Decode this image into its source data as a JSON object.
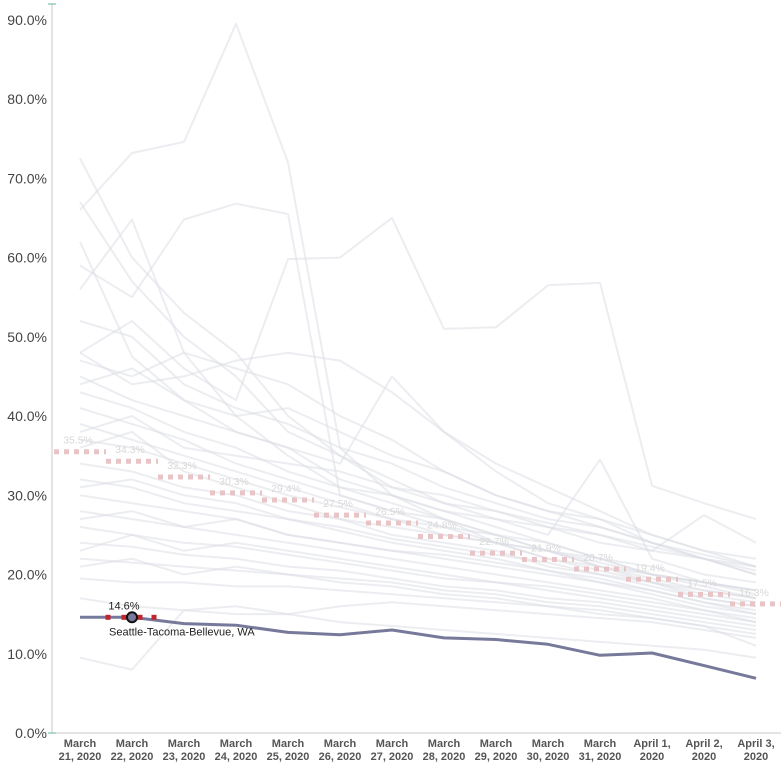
{
  "chart_data": {
    "type": "line",
    "title": "",
    "xlabel": "",
    "ylabel": "",
    "categories": [
      "March 21, 2020",
      "March 22, 2020",
      "March 23, 2020",
      "March 24, 2020",
      "March 25, 2020",
      "March 26, 2020",
      "March 27, 2020",
      "March 28, 2020",
      "March 29, 2020",
      "March 30, 2020",
      "March 31, 2020",
      "April 1, 2020",
      "April 2, 2020",
      "April 3, 2020"
    ],
    "category_ticks": [
      [
        "March",
        "21, 2020"
      ],
      [
        "March",
        "22, 2020"
      ],
      [
        "March",
        "23, 2020"
      ],
      [
        "March",
        "24, 2020"
      ],
      [
        "March",
        "25, 2020"
      ],
      [
        "March",
        "26, 2020"
      ],
      [
        "March",
        "27, 2020"
      ],
      [
        "March",
        "28, 2020"
      ],
      [
        "March",
        "29, 2020"
      ],
      [
        "March",
        "30, 2020"
      ],
      [
        "March",
        "31, 2020"
      ],
      [
        "April 1,",
        "2020"
      ],
      [
        "April 2,",
        "2020"
      ],
      [
        "April 3,",
        "2020"
      ]
    ],
    "yticks": [
      "0.0%",
      "10.0%",
      "20.0%",
      "30.0%",
      "40.0%",
      "50.0%",
      "60.0%",
      "70.0%",
      "80.0%",
      "90.0%"
    ],
    "ylim": [
      0,
      92
    ],
    "grid": false,
    "average_series": {
      "values": [
        35.5,
        34.3,
        32.3,
        30.3,
        29.4,
        27.5,
        26.5,
        24.8,
        22.7,
        21.9,
        20.7,
        19.4,
        17.5,
        16.3
      ],
      "labels": [
        "35.5%",
        "34.3%",
        "32.3%",
        "30.3%",
        "29.4%",
        "27.5%",
        "26.5%",
        "24.8%",
        "22.7%",
        "21.9%",
        "20.7%",
        "19.4%",
        "17.5%",
        "16.3%"
      ],
      "color": "#e8c4c6"
    },
    "highlight_series": {
      "name": "Seattle-Tacoma-Bellevue, WA",
      "values": [
        14.6,
        14.6,
        13.8,
        13.6,
        12.7,
        12.4,
        13.0,
        12.0,
        11.8,
        11.2,
        9.8,
        10.1,
        8.5,
        6.9
      ],
      "point_label": "14.6%",
      "point_index": 1,
      "color": "#77799a",
      "marker_color": "#c0262d"
    },
    "background_series": [
      {
        "values": [
          72.5,
          60.0,
          53.0,
          48.0,
          40.0,
          35.0,
          31.0,
          29.0,
          27.0,
          26.0,
          24.0,
          23.0,
          22.0,
          20.5
        ]
      },
      {
        "values": [
          66.0,
          73.2,
          74.6,
          89.5,
          72.0,
          36.0,
          30.0,
          28.0,
          26.0,
          24.0,
          22.0,
          21.0,
          19.0,
          18.0
        ]
      },
      {
        "values": [
          59.0,
          55.0,
          64.8,
          66.8,
          65.5,
          30.0,
          28.0,
          26.0,
          25.0,
          23.0,
          21.5,
          20.0,
          18.5,
          17.0
        ]
      },
      {
        "values": [
          48.0,
          52.0,
          46.0,
          42.0,
          59.8,
          60.0,
          65.0,
          51.0,
          51.2,
          56.5,
          56.8,
          31.2,
          29.0,
          27.0
        ]
      },
      {
        "values": [
          67.0,
          57.0,
          50.0,
          45.0,
          38.0,
          35.0,
          32.0,
          29.0,
          28.0,
          26.5,
          25.0,
          23.5,
          22.0,
          20.0
        ]
      },
      {
        "values": [
          62.0,
          47.5,
          42.0,
          38.0,
          36.0,
          32.0,
          30.0,
          27.0,
          24.0,
          22.0,
          21.0,
          19.0,
          18.0,
          17.0
        ]
      },
      {
        "values": [
          56.0,
          64.8,
          48.0,
          40.0,
          35.0,
          31.0,
          29.0,
          27.0,
          25.0,
          23.0,
          22.0,
          20.0,
          19.0,
          18.0
        ]
      },
      {
        "values": [
          52.0,
          50.0,
          44.0,
          41.0,
          39.0,
          36.0,
          34.0,
          31.0,
          29.0,
          27.0,
          26.0,
          24.0,
          22.5,
          21.0
        ]
      },
      {
        "values": [
          47.0,
          45.0,
          48.0,
          46.0,
          44.0,
          40.0,
          37.0,
          33.0,
          30.0,
          28.0,
          26.0,
          24.0,
          22.0,
          21.0
        ]
      },
      {
        "values": [
          45.0,
          42.0,
          40.0,
          38.0,
          36.0,
          34.0,
          45.0,
          38.0,
          33.0,
          29.0,
          27.0,
          25.0,
          23.0,
          21.0
        ]
      },
      {
        "values": [
          43.0,
          41.0,
          38.0,
          36.0,
          33.0,
          31.0,
          30.0,
          28.0,
          27.0,
          25.0,
          34.5,
          22.0,
          20.0,
          19.0
        ]
      },
      {
        "values": [
          41.0,
          39.0,
          37.0,
          34.0,
          32.0,
          30.0,
          28.0,
          27.0,
          25.0,
          24.0,
          22.0,
          20.0,
          19.0,
          18.0
        ]
      },
      {
        "values": [
          39.0,
          37.0,
          35.0,
          33.0,
          31.0,
          29.0,
          27.0,
          26.0,
          24.0,
          23.0,
          21.0,
          19.5,
          18.0,
          17.0
        ]
      },
      {
        "values": [
          37.0,
          36.0,
          34.0,
          32.0,
          30.0,
          28.5,
          27.0,
          25.0,
          24.0,
          22.0,
          20.5,
          19.0,
          17.5,
          16.5
        ]
      },
      {
        "values": [
          34.0,
          33.0,
          31.0,
          30.0,
          28.0,
          27.0,
          25.0,
          24.0,
          23.0,
          21.0,
          20.0,
          18.5,
          17.0,
          16.0
        ]
      },
      {
        "values": [
          32.0,
          31.0,
          29.0,
          28.0,
          27.0,
          25.5,
          24.0,
          23.0,
          22.0,
          20.5,
          19.5,
          18.0,
          16.5,
          15.5
        ]
      },
      {
        "values": [
          30.0,
          29.0,
          28.0,
          27.0,
          25.0,
          24.0,
          23.0,
          22.0,
          21.0,
          20.0,
          19.0,
          17.5,
          16.0,
          15.0
        ]
      },
      {
        "values": [
          28.0,
          27.0,
          26.0,
          25.0,
          24.0,
          23.0,
          22.0,
          21.0,
          20.0,
          19.0,
          18.0,
          17.0,
          15.5,
          14.5
        ]
      },
      {
        "values": [
          26.0,
          25.0,
          24.0,
          23.5,
          22.5,
          21.5,
          20.5,
          19.5,
          19.0,
          18.0,
          17.0,
          16.0,
          15.0,
          14.0
        ]
      },
      {
        "values": [
          24.0,
          23.5,
          22.5,
          22.0,
          21.0,
          20.5,
          19.5,
          18.5,
          18.0,
          17.0,
          16.5,
          15.5,
          14.5,
          13.5
        ]
      },
      {
        "values": [
          22.0,
          21.5,
          21.0,
          20.5,
          20.0,
          19.5,
          19.0,
          18.0,
          17.5,
          16.5,
          16.0,
          15.0,
          14.0,
          13.0
        ]
      },
      {
        "values": [
          19.5,
          19.0,
          19.0,
          18.5,
          18.5,
          18.0,
          17.5,
          17.0,
          16.5,
          16.0,
          15.5,
          14.5,
          13.5,
          12.5
        ]
      },
      {
        "values": [
          17.0,
          16.0,
          15.5,
          15.0,
          15.0,
          16.0,
          16.5,
          16.0,
          15.5,
          15.0,
          14.5,
          14.0,
          13.0,
          12.0
        ]
      },
      {
        "values": [
          9.5,
          8.0,
          15.5,
          16.0,
          15.0,
          14.0,
          13.5,
          13.0,
          12.5,
          12.0,
          11.5,
          11.0,
          10.5,
          9.5
        ]
      },
      {
        "values": [
          48.0,
          44.0,
          45.0,
          47.0,
          48.0,
          47.0,
          43.0,
          38.0,
          34.0,
          31.0,
          28.0,
          25.0,
          23.0,
          22.0
        ]
      },
      {
        "values": [
          44.0,
          46.0,
          42.0,
          40.0,
          41.0,
          38.0,
          35.0,
          33.0,
          30.0,
          28.0,
          27.0,
          24.0,
          22.0,
          20.0
        ]
      },
      {
        "values": [
          38.0,
          40.0,
          36.0,
          35.0,
          34.0,
          33.0,
          31.0,
          30.0,
          28.0,
          26.0,
          25.0,
          23.0,
          27.5,
          24.0
        ]
      },
      {
        "values": [
          36.0,
          38.0,
          33.0,
          31.0,
          29.0,
          27.0,
          26.0,
          25.0,
          24.0,
          23.0,
          21.0,
          20.0,
          19.0,
          17.5
        ]
      },
      {
        "values": [
          31.0,
          32.0,
          30.0,
          29.0,
          27.0,
          26.0,
          24.5,
          23.5,
          22.5,
          21.5,
          20.0,
          19.0,
          17.0,
          16.0
        ]
      },
      {
        "values": [
          27.0,
          28.0,
          26.0,
          27.0,
          25.0,
          24.0,
          23.0,
          22.5,
          21.5,
          20.5,
          19.0,
          18.0,
          16.5,
          15.0
        ]
      },
      {
        "values": [
          23.0,
          25.0,
          23.0,
          24.0,
          23.0,
          22.0,
          21.0,
          20.0,
          19.0,
          18.5,
          17.5,
          16.5,
          15.5,
          14.0
        ]
      },
      {
        "values": [
          21.0,
          22.0,
          20.0,
          21.0,
          20.0,
          19.0,
          18.5,
          17.5,
          17.0,
          16.0,
          15.0,
          14.5,
          13.5,
          11.0
        ]
      }
    ]
  }
}
